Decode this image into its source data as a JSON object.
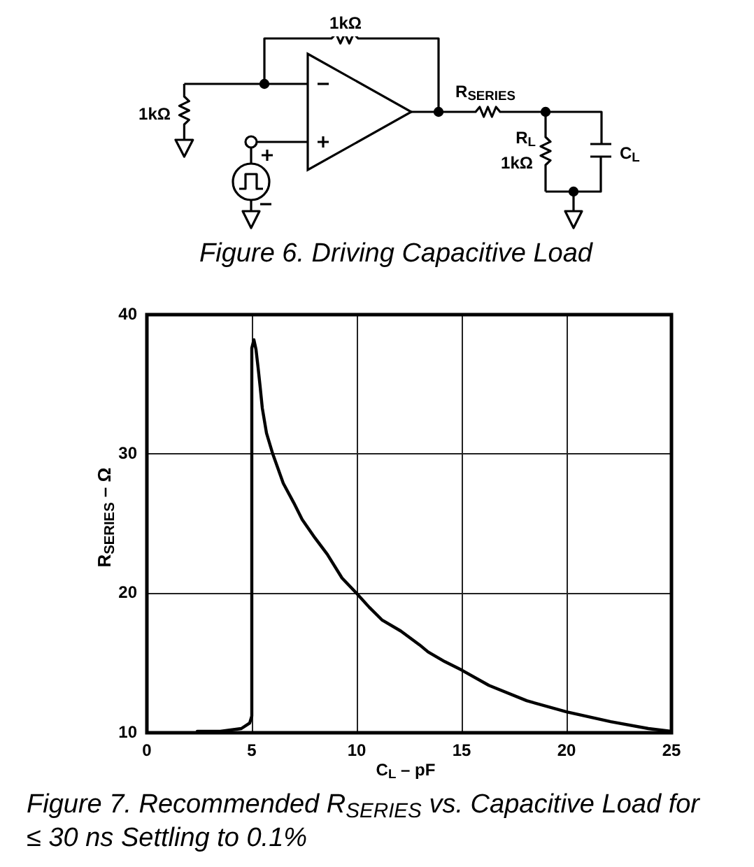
{
  "chart_data": {
    "type": "line",
    "title": "Figure 7. Recommended R$_{SERIES}$ vs. Capacitive Load for ≤ 30 ns Settling to 0.1%",
    "xlabel": "C$_{L}$ – pF",
    "ylabel": "R$_{SERIES}$ – Ω",
    "annotations": [
      "1kΩ",
      "1kΩ",
      "R$_{SERIES}$",
      "R$_{L}$",
      "1kΩ",
      "C$_{L}$",
      "Figure 6. Driving Capacitive Load"
    ],
    "x": [
      2.4,
      3.5,
      4.5,
      4.9,
      5.0,
      5.0,
      5.1,
      5.2,
      5.3,
      5.4,
      5.5,
      5.7,
      6.0,
      6.5,
      7.0,
      7.4,
      8.0,
      8.6,
      9.3,
      10.0,
      10.6,
      11.2,
      12.1,
      13.0,
      13.4,
      14.2,
      15.0,
      16.3,
      18.1,
      20.0,
      22.1,
      23.9,
      25.0
    ],
    "values": [
      10.1,
      10.1,
      10.3,
      10.7,
      11.2,
      37.6,
      38.2,
      37.5,
      36.2,
      34.8,
      33.3,
      31.5,
      30.0,
      27.9,
      26.5,
      25.3,
      24.0,
      22.8,
      21.1,
      20.0,
      19.0,
      18.1,
      17.3,
      16.3,
      15.8,
      15.1,
      14.5,
      13.4,
      12.3,
      11.5,
      10.8,
      10.3,
      10.1
    ],
    "color": "#000000",
    "xlim": [
      0,
      25
    ],
    "xticks": [
      0,
      5,
      10,
      15,
      20,
      25
    ],
    "ylim": [
      10,
      40
    ],
    "yticks": [
      10,
      20,
      30,
      40
    ],
    "grid": true
  }
}
